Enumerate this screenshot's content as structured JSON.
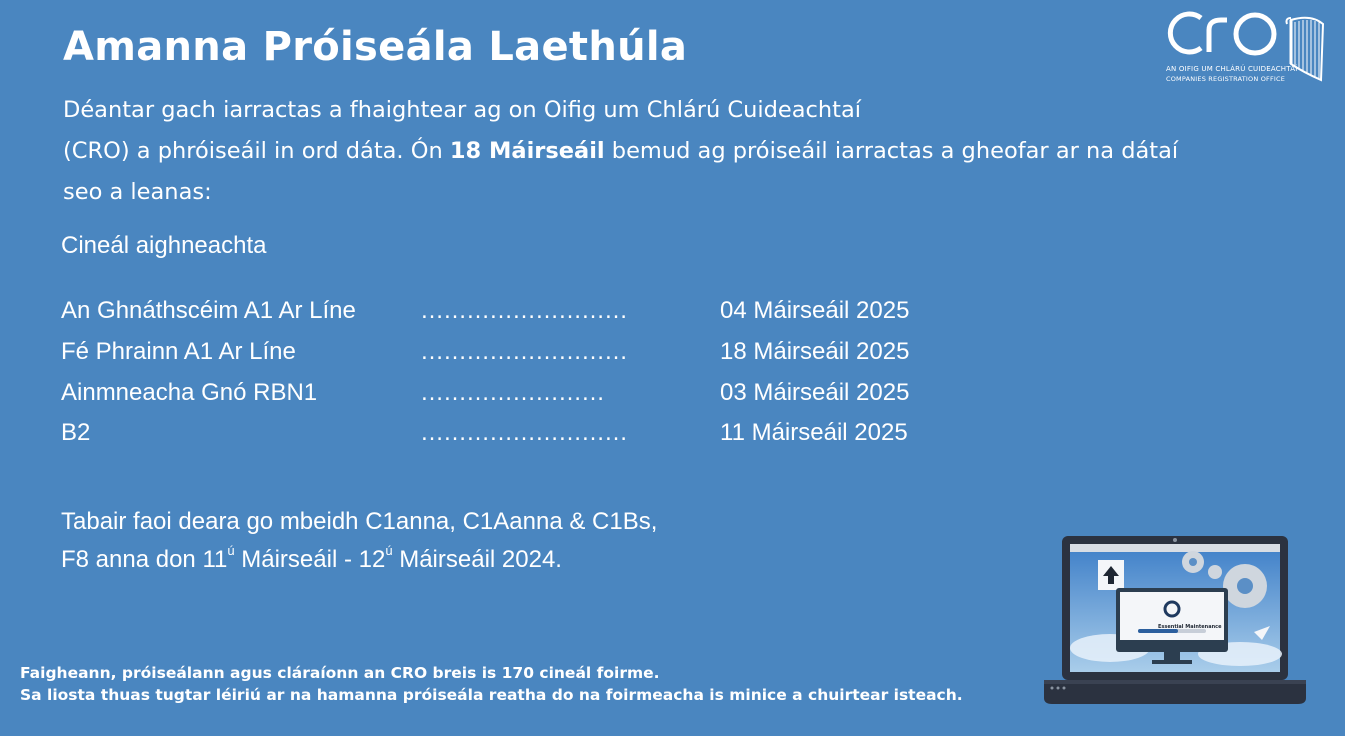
{
  "title": "Amanna Próiseála Laethúla",
  "intro": {
    "line1": "Déantar gach iarractas a fhaightear ag on Oifig um Chlárú Cuideachtaí",
    "line2_before": "(CRO) a phróiseáil in ord dáta. Ón ",
    "line2_bold": "18 Máirseáil",
    "line2_after": " bemud ag próiseáil iarractas a gheofar ar na dátaí",
    "line3": "seo a leanas:"
  },
  "submission_type_heading": "Cineál aighneachta",
  "rows": [
    {
      "name": "An Ghnáthscéim A1 Ar Líne",
      "dots": "………………………",
      "date": "04 Máirseáil 2025"
    },
    {
      "name": "Fé Phrainn A1 Ar Líne",
      "dots": "………………………",
      "date": "18 Máirseáil 2025"
    },
    {
      "name": "Ainmneacha Gnó RBN1",
      "dots": "……………………",
      "date": "03 Máirseáil 2025"
    },
    {
      "name": "B2",
      "dots": "………………………",
      "date": "11 Máirseáil 2025"
    }
  ],
  "note": {
    "line1": "Tabair faoi deara go mbeidh C1anna, C1Aanna & C1Bs,",
    "line2_a": "F8 anna don 11",
    "sup1": "ú",
    "line2_b": " Máirseáil - 12",
    "sup2": "ú",
    "line2_c": " Máirseáil 2024."
  },
  "footer": {
    "line1": "Faigheann, próiseálann agus cláraíonn an CRO breis is 170 cineál foirme.",
    "line2": "Sa liosta thuas tugtar léiriú ar na hamanna próiseála reatha do na foirmeacha is minice a chuirtear isteach."
  },
  "logo": {
    "wordmark": "CRO",
    "subtitle_irish": "AN OIFIG UM CHLÁRÚ CUIDEACHTAÍ",
    "subtitle_english": "COMPANIES REGISTRATION OFFICE"
  },
  "illustration": {
    "screen_text": "Essential Maintenance",
    "icon": "laptop-maintenance-illustration"
  },
  "colors": {
    "background": "#4a86c0",
    "text": "#ffffff"
  }
}
